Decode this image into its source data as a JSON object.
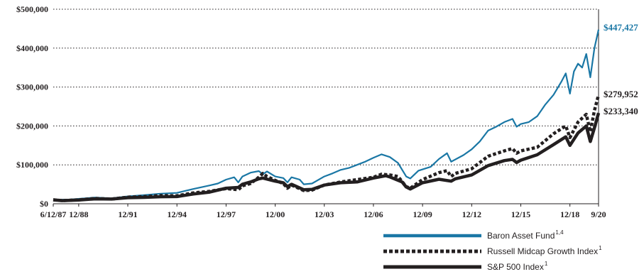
{
  "chart_data": {
    "type": "line",
    "ylim": [
      0,
      500000
    ],
    "y_ticks": [
      {
        "value": 0,
        "label": "$0"
      },
      {
        "value": 100000,
        "label": "$100,000"
      },
      {
        "value": 200000,
        "label": "$200,000"
      },
      {
        "value": 300000,
        "label": "$300,000"
      },
      {
        "value": 400000,
        "label": "$400,000"
      },
      {
        "value": 500000,
        "label": "$500,000"
      }
    ],
    "x_ticks": [
      {
        "date": "1987-06-12",
        "label": "6/12/87"
      },
      {
        "date": "1988-12-31",
        "label": "12/88"
      },
      {
        "date": "1991-12-31",
        "label": "12/91"
      },
      {
        "date": "1994-12-31",
        "label": "12/94"
      },
      {
        "date": "1997-12-31",
        "label": "12/97"
      },
      {
        "date": "2000-12-31",
        "label": "12/00"
      },
      {
        "date": "2003-12-31",
        "label": "12/03"
      },
      {
        "date": "2006-12-31",
        "label": "12/06"
      },
      {
        "date": "2009-12-31",
        "label": "12/09"
      },
      {
        "date": "2012-12-31",
        "label": "12/12"
      },
      {
        "date": "2015-12-31",
        "label": "12/15"
      },
      {
        "date": "2018-12-31",
        "label": "12/18"
      },
      {
        "date": "2020-09-30",
        "label": "9/20"
      }
    ],
    "grid": "horizontal-dotted",
    "legend_position": "bottom-right",
    "series": [
      {
        "name": "Baron Asset Fund",
        "name_superscript": "1,4",
        "color": "#1a77a5",
        "style": "solid",
        "end_label": "$447,427",
        "points": [
          [
            "1987-06-12",
            10000
          ],
          [
            "1988-06-30",
            11000
          ],
          [
            "1989-12-31",
            16000
          ],
          [
            "1990-12-31",
            14000
          ],
          [
            "1991-12-31",
            19000
          ],
          [
            "1992-12-31",
            22000
          ],
          [
            "1993-12-31",
            26000
          ],
          [
            "1994-12-31",
            28000
          ],
          [
            "1995-12-31",
            38000
          ],
          [
            "1996-12-31",
            47000
          ],
          [
            "1997-06-30",
            52000
          ],
          [
            "1997-12-31",
            62000
          ],
          [
            "1998-06-30",
            68000
          ],
          [
            "1998-09-30",
            55000
          ],
          [
            "1998-12-31",
            70000
          ],
          [
            "1999-06-30",
            80000
          ],
          [
            "1999-12-31",
            84000
          ],
          [
            "2000-03-31",
            76000
          ],
          [
            "2000-06-30",
            83000
          ],
          [
            "2000-12-31",
            70000
          ],
          [
            "2001-06-30",
            66000
          ],
          [
            "2001-09-30",
            55000
          ],
          [
            "2001-12-31",
            68000
          ],
          [
            "2002-06-30",
            62000
          ],
          [
            "2002-09-30",
            50000
          ],
          [
            "2003-03-31",
            52000
          ],
          [
            "2003-12-31",
            70000
          ],
          [
            "2004-06-30",
            78000
          ],
          [
            "2004-12-31",
            87000
          ],
          [
            "2005-06-30",
            92000
          ],
          [
            "2005-12-31",
            100000
          ],
          [
            "2006-06-30",
            108000
          ],
          [
            "2006-12-31",
            118000
          ],
          [
            "2007-06-30",
            127000
          ],
          [
            "2007-12-31",
            120000
          ],
          [
            "2008-06-30",
            105000
          ],
          [
            "2008-12-31",
            70000
          ],
          [
            "2009-03-31",
            65000
          ],
          [
            "2009-09-30",
            85000
          ],
          [
            "2010-06-30",
            95000
          ],
          [
            "2010-12-31",
            115000
          ],
          [
            "2011-06-30",
            130000
          ],
          [
            "2011-09-30",
            108000
          ],
          [
            "2012-06-30",
            125000
          ],
          [
            "2012-12-31",
            140000
          ],
          [
            "2013-06-30",
            160000
          ],
          [
            "2013-12-31",
            188000
          ],
          [
            "2014-06-30",
            198000
          ],
          [
            "2014-12-31",
            210000
          ],
          [
            "2015-06-30",
            218000
          ],
          [
            "2015-09-30",
            198000
          ],
          [
            "2015-12-31",
            205000
          ],
          [
            "2016-06-30",
            210000
          ],
          [
            "2016-12-31",
            225000
          ],
          [
            "2017-06-30",
            255000
          ],
          [
            "2017-12-31",
            280000
          ],
          [
            "2018-06-30",
            315000
          ],
          [
            "2018-09-30",
            335000
          ],
          [
            "2018-12-31",
            283000
          ],
          [
            "2019-03-31",
            340000
          ],
          [
            "2019-06-30",
            360000
          ],
          [
            "2019-09-30",
            350000
          ],
          [
            "2019-12-31",
            385000
          ],
          [
            "2020-03-31",
            325000
          ],
          [
            "2020-06-30",
            400000
          ],
          [
            "2020-09-30",
            447427
          ]
        ]
      },
      {
        "name": "Russell Midcap Growth Index",
        "name_superscript": "1",
        "color": "#231f20",
        "style": "dotted",
        "end_label": "$279,952",
        "points": [
          [
            "1987-06-12",
            10000
          ],
          [
            "1987-12-31",
            8000
          ],
          [
            "1988-12-31",
            10000
          ],
          [
            "1989-12-31",
            13500
          ],
          [
            "1990-12-31",
            12000
          ],
          [
            "1991-12-31",
            17000
          ],
          [
            "1992-12-31",
            18500
          ],
          [
            "1993-12-31",
            21000
          ],
          [
            "1994-12-31",
            20500
          ],
          [
            "1995-12-31",
            28000
          ],
          [
            "1996-12-31",
            32000
          ],
          [
            "1997-12-31",
            39000
          ],
          [
            "1998-09-30",
            36000
          ],
          [
            "1998-12-31",
            46000
          ],
          [
            "1999-06-30",
            52000
          ],
          [
            "1999-12-31",
            68000
          ],
          [
            "2000-03-31",
            78000
          ],
          [
            "2000-06-30",
            70000
          ],
          [
            "2000-12-31",
            60000
          ],
          [
            "2001-06-30",
            52000
          ],
          [
            "2001-09-30",
            40000
          ],
          [
            "2001-12-31",
            48000
          ],
          [
            "2002-09-30",
            34000
          ],
          [
            "2003-03-31",
            35000
          ],
          [
            "2003-12-31",
            48000
          ],
          [
            "2004-12-31",
            56000
          ],
          [
            "2005-12-31",
            62000
          ],
          [
            "2006-12-31",
            68000
          ],
          [
            "2007-06-30",
            76000
          ],
          [
            "2007-12-31",
            74000
          ],
          [
            "2008-06-30",
            70000
          ],
          [
            "2008-12-31",
            44000
          ],
          [
            "2009-03-31",
            40000
          ],
          [
            "2009-12-31",
            62000
          ],
          [
            "2010-12-31",
            80000
          ],
          [
            "2011-06-30",
            85000
          ],
          [
            "2011-09-30",
            70000
          ],
          [
            "2011-12-31",
            78000
          ],
          [
            "2012-12-31",
            90000
          ],
          [
            "2013-12-31",
            122000
          ],
          [
            "2014-12-31",
            136000
          ],
          [
            "2015-06-30",
            142000
          ],
          [
            "2015-09-30",
            130000
          ],
          [
            "2015-12-31",
            136000
          ],
          [
            "2016-12-31",
            145000
          ],
          [
            "2017-12-31",
            180000
          ],
          [
            "2018-09-30",
            200000
          ],
          [
            "2018-12-31",
            170000
          ],
          [
            "2019-06-30",
            210000
          ],
          [
            "2019-12-31",
            230000
          ],
          [
            "2020-03-31",
            185000
          ],
          [
            "2020-06-30",
            240000
          ],
          [
            "2020-09-30",
            279952
          ]
        ]
      },
      {
        "name": "S&P 500 Index",
        "name_superscript": "1",
        "color": "#231f20",
        "style": "solid-thick",
        "end_label": "$233,340",
        "points": [
          [
            "1987-06-12",
            10000
          ],
          [
            "1987-12-31",
            8000
          ],
          [
            "1988-12-31",
            9500
          ],
          [
            "1989-12-31",
            12500
          ],
          [
            "1990-12-31",
            12000
          ],
          [
            "1991-12-31",
            15500
          ],
          [
            "1992-12-31",
            16500
          ],
          [
            "1993-12-31",
            18000
          ],
          [
            "1994-12-31",
            18500
          ],
          [
            "1995-12-31",
            25000
          ],
          [
            "1996-12-31",
            30000
          ],
          [
            "1997-12-31",
            40000
          ],
          [
            "1998-09-30",
            42000
          ],
          [
            "1998-12-31",
            50000
          ],
          [
            "1999-06-30",
            56000
          ],
          [
            "1999-12-31",
            64000
          ],
          [
            "2000-03-31",
            66000
          ],
          [
            "2000-12-31",
            58000
          ],
          [
            "2001-06-30",
            54000
          ],
          [
            "2001-09-30",
            44000
          ],
          [
            "2001-12-31",
            50000
          ],
          [
            "2002-09-30",
            36000
          ],
          [
            "2003-03-31",
            37000
          ],
          [
            "2003-12-31",
            48000
          ],
          [
            "2004-12-31",
            54000
          ],
          [
            "2005-12-31",
            56000
          ],
          [
            "2006-12-31",
            66000
          ],
          [
            "2007-09-30",
            72000
          ],
          [
            "2007-12-31",
            69000
          ],
          [
            "2008-09-30",
            56000
          ],
          [
            "2008-12-31",
            43000
          ],
          [
            "2009-03-31",
            38000
          ],
          [
            "2009-12-31",
            54000
          ],
          [
            "2010-12-31",
            63000
          ],
          [
            "2011-09-30",
            58000
          ],
          [
            "2011-12-31",
            64000
          ],
          [
            "2012-12-31",
            74000
          ],
          [
            "2013-12-31",
            98000
          ],
          [
            "2014-12-31",
            111000
          ],
          [
            "2015-06-30",
            114000
          ],
          [
            "2015-09-30",
            106000
          ],
          [
            "2015-12-31",
            112000
          ],
          [
            "2016-12-31",
            126000
          ],
          [
            "2017-12-31",
            152000
          ],
          [
            "2018-09-30",
            172000
          ],
          [
            "2018-12-31",
            150000
          ],
          [
            "2019-06-30",
            182000
          ],
          [
            "2019-12-31",
            200000
          ],
          [
            "2020-03-31",
            160000
          ],
          [
            "2020-06-30",
            195000
          ],
          [
            "2020-09-30",
            233340
          ]
        ]
      }
    ]
  }
}
